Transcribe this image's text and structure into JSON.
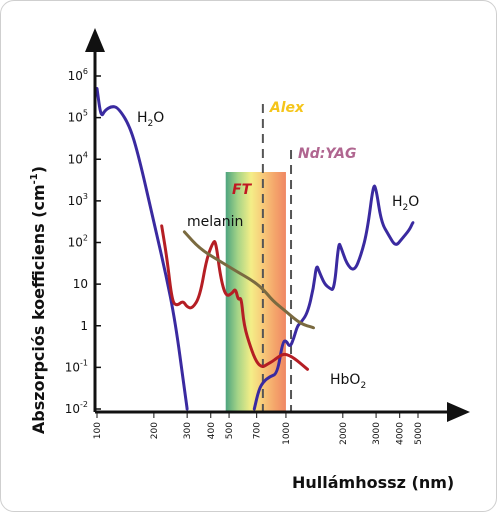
{
  "chart_data": {
    "type": "line",
    "ylabel_main": "Abszorpciós koefficiens (cm",
    "ylabel_sup": "-1",
    "ylabel_end": ")",
    "xlabel": "Hullámhossz (nm)",
    "x_scale": "log",
    "y_scale": "log",
    "xlim": [
      100,
      5000
    ],
    "ylim": [
      0.01,
      1000000
    ],
    "x_ticks": [
      100,
      200,
      300,
      400,
      500,
      700,
      1000,
      2000,
      3000,
      4000,
      5000
    ],
    "y_ticks": [
      {
        "value": 1000000,
        "base": "10",
        "exp": "6"
      },
      {
        "value": 100000,
        "base": "10",
        "exp": "5"
      },
      {
        "value": 10000,
        "base": "10",
        "exp": "4"
      },
      {
        "value": 1000,
        "base": "10",
        "exp": "3"
      },
      {
        "value": 100,
        "base": "10",
        "exp": "2"
      },
      {
        "value": 10,
        "base": "10",
        "exp": ""
      },
      {
        "value": 1,
        "base": "1",
        "exp": ""
      },
      {
        "value": 0.1,
        "base": "10",
        "exp": "-1"
      },
      {
        "value": 0.01,
        "base": "10",
        "exp": "-2"
      }
    ],
    "series": [
      {
        "name": "H2O",
        "color": "#3a2aa0",
        "points": [
          [
            100,
            500000
          ],
          [
            105,
            100000
          ],
          [
            110,
            150000
          ],
          [
            120,
            190000
          ],
          [
            130,
            170000
          ],
          [
            150,
            60000
          ],
          [
            170,
            8000
          ],
          [
            200,
            300
          ],
          [
            230,
            20
          ],
          [
            260,
            1.2
          ],
          [
            290,
            0.03
          ],
          [
            300,
            0.01
          ]
        ]
      },
      {
        "name": "H2O-IR",
        "color": "#3a2aa0",
        "points": [
          [
            680,
            0.01
          ],
          [
            720,
            0.03
          ],
          [
            760,
            0.045
          ],
          [
            820,
            0.06
          ],
          [
            900,
            0.07
          ],
          [
            960,
            0.4
          ],
          [
            1000,
            0.45
          ],
          [
            1050,
            0.3
          ],
          [
            1100,
            0.5
          ],
          [
            1150,
            1
          ],
          [
            1200,
            1.2
          ],
          [
            1300,
            2
          ],
          [
            1400,
            8
          ],
          [
            1450,
            30
          ],
          [
            1500,
            20
          ],
          [
            1600,
            10
          ],
          [
            1700,
            8
          ],
          [
            1800,
            7
          ],
          [
            1900,
            100
          ],
          [
            1950,
            80
          ],
          [
            2100,
            30
          ],
          [
            2300,
            20
          ],
          [
            2500,
            50
          ],
          [
            2700,
            200
          ],
          [
            2900,
            2500
          ],
          [
            3000,
            2000
          ],
          [
            3200,
            300
          ],
          [
            3500,
            150
          ],
          [
            3800,
            80
          ],
          [
            4100,
            120
          ],
          [
            4500,
            200
          ],
          [
            4700,
            300
          ]
        ]
      },
      {
        "name": "HbO2",
        "color": "#b51e24",
        "points": [
          [
            220,
            250
          ],
          [
            235,
            40
          ],
          [
            250,
            3.8
          ],
          [
            265,
            3
          ],
          [
            285,
            4
          ],
          [
            300,
            2.8
          ],
          [
            320,
            2.6
          ],
          [
            350,
            5
          ],
          [
            380,
            40
          ],
          [
            410,
            100
          ],
          [
            425,
            110
          ],
          [
            450,
            15
          ],
          [
            480,
            5
          ],
          [
            520,
            6
          ],
          [
            540,
            8
          ],
          [
            560,
            4
          ],
          [
            580,
            5
          ],
          [
            600,
            1
          ],
          [
            650,
            0.3
          ],
          [
            700,
            0.13
          ],
          [
            750,
            0.1
          ],
          [
            800,
            0.12
          ],
          [
            850,
            0.14
          ],
          [
            900,
            0.17
          ],
          [
            950,
            0.2
          ],
          [
            1000,
            0.21
          ],
          [
            1100,
            0.17
          ],
          [
            1300,
            0.09
          ]
        ]
      },
      {
        "name": "melanin",
        "color": "#7a6a40",
        "points": [
          [
            290,
            180
          ],
          [
            350,
            70
          ],
          [
            450,
            35
          ],
          [
            550,
            20
          ],
          [
            650,
            13
          ],
          [
            750,
            8
          ],
          [
            850,
            4
          ],
          [
            1000,
            2.2
          ],
          [
            1200,
            1.1
          ],
          [
            1400,
            0.9
          ]
        ]
      }
    ],
    "bands": [
      {
        "label": "FT",
        "from": 480,
        "to": 1000
      }
    ],
    "lasers": [
      {
        "label": "Alex",
        "wavelength": 755,
        "color": "#f5c51a"
      },
      {
        "label": "Nd:YAG",
        "wavelength": 1064,
        "color": "#b06690"
      }
    ],
    "annotations": {
      "h2o_top": {
        "base": "H",
        "sub": "2",
        "rest": "O"
      },
      "h2o_right": {
        "base": "H",
        "sub": "2",
        "rest": "O"
      },
      "melanin": "melanin",
      "ft": "FT",
      "hbo2": {
        "base": "HbO",
        "sub": "2"
      }
    }
  }
}
